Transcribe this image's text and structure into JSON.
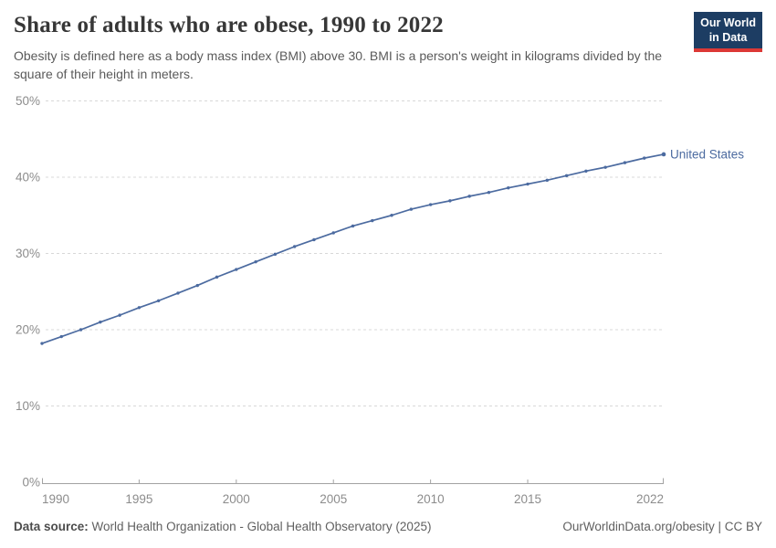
{
  "header": {
    "title": "Share of adults who are obese, 1990 to 2022",
    "subtitle": "Obesity is defined here as a body mass index (BMI) above 30. BMI is a person's weight in kilograms divided by the square of their height in meters.",
    "logo": {
      "line1": "Our World",
      "line2": "in Data"
    }
  },
  "footer": {
    "source_label": "Data source:",
    "source_text": " World Health Organization - Global Health Observatory (2025)",
    "attribution": "OurWorldinData.org/obesity | CC BY"
  },
  "colors": {
    "series": "#4c6ba0",
    "gridline": "#d8d8d8",
    "axis": "#a3a3a3",
    "tick_text": "#8c8c8c",
    "logo_bg": "#1d3d63",
    "logo_red": "#dc3936"
  },
  "chart_data": {
    "type": "line",
    "title": "Share of adults who are obese, 1990 to 2022",
    "xlabel": "",
    "ylabel": "",
    "xlim": [
      1990,
      2022
    ],
    "ylim": [
      0,
      50
    ],
    "grid": true,
    "legend_position": "end-of-line",
    "x_ticks": [
      1990,
      1995,
      2000,
      2005,
      2010,
      2015,
      2022
    ],
    "y_ticks": [
      0,
      10,
      20,
      30,
      40,
      50
    ],
    "y_tick_suffix": "%",
    "x": [
      1990,
      1991,
      1992,
      1993,
      1994,
      1995,
      1996,
      1997,
      1998,
      1999,
      2000,
      2001,
      2002,
      2003,
      2004,
      2005,
      2006,
      2007,
      2008,
      2009,
      2010,
      2011,
      2012,
      2013,
      2014,
      2015,
      2016,
      2017,
      2018,
      2019,
      2020,
      2021,
      2022
    ],
    "series": [
      {
        "name": "United States",
        "color": "#4c6ba0",
        "values": [
          18.2,
          19.1,
          20.0,
          21.0,
          21.9,
          22.9,
          23.8,
          24.8,
          25.8,
          26.9,
          27.9,
          28.9,
          29.9,
          30.9,
          31.8,
          32.7,
          33.6,
          34.3,
          35.0,
          35.8,
          36.4,
          36.9,
          37.5,
          38.0,
          38.6,
          39.1,
          39.6,
          40.2,
          40.8,
          41.3,
          41.9,
          42.5,
          43.0
        ]
      }
    ]
  }
}
